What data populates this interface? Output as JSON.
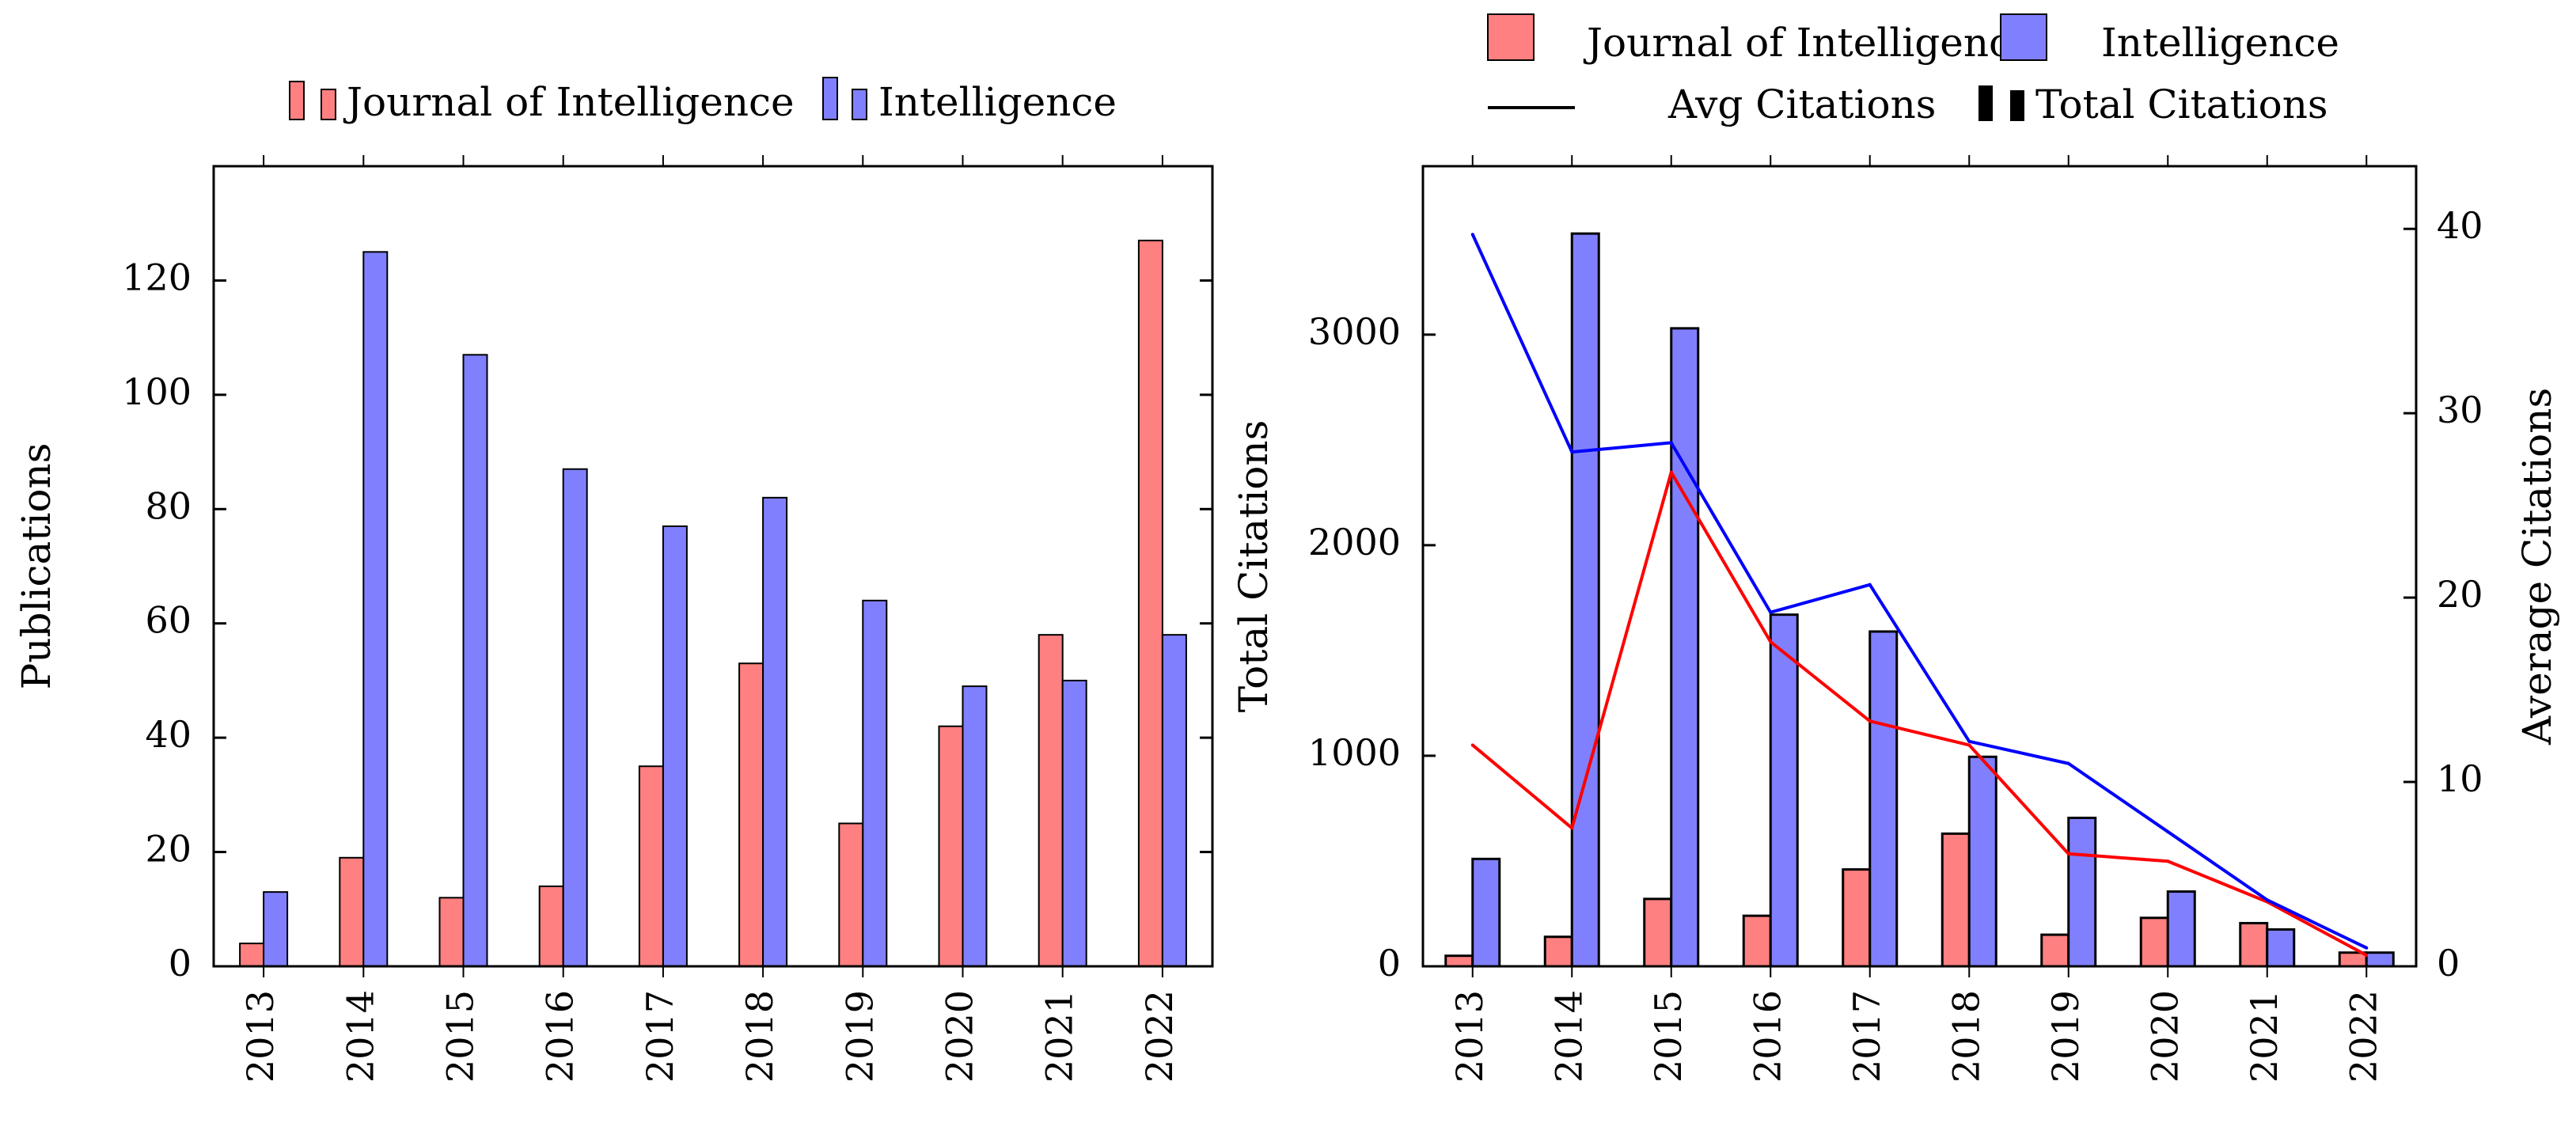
{
  "colors": {
    "journal": "#ff8080",
    "intelligence": "#8080ff",
    "journal_line": "#ff0000",
    "intelligence_line": "#0000ff",
    "stroke": "#000000"
  },
  "chart_data": [
    {
      "type": "bar",
      "categories": [
        "2013",
        "2014",
        "2015",
        "2016",
        "2017",
        "2018",
        "2019",
        "2020",
        "2021",
        "2022"
      ],
      "series": [
        {
          "name": "Journal of Intelligence",
          "values": [
            4,
            19,
            12,
            14,
            35,
            53,
            25,
            42,
            58,
            127
          ]
        },
        {
          "name": "Intelligence",
          "values": [
            13,
            125,
            107,
            87,
            77,
            82,
            64,
            49,
            50,
            58
          ]
        }
      ],
      "ylabel": "Publications",
      "xlabel": "",
      "ylim": [
        0,
        140
      ],
      "yticks": [
        0,
        20,
        40,
        60,
        80,
        100,
        120
      ],
      "legend": [
        "Journal of Intelligence",
        "Intelligence"
      ],
      "legend_position": "top"
    },
    {
      "type": "bar+line",
      "categories": [
        "2013",
        "2014",
        "2015",
        "2016",
        "2017",
        "2018",
        "2019",
        "2020",
        "2021",
        "2022"
      ],
      "series": [
        {
          "name": "Journal of Intelligence",
          "kind": "bar",
          "values": [
            50,
            140,
            320,
            240,
            460,
            630,
            150,
            230,
            205,
            65
          ]
        },
        {
          "name": "Intelligence",
          "kind": "bar",
          "values": [
            510,
            3480,
            3030,
            1670,
            1590,
            995,
            705,
            355,
            175,
            65
          ]
        }
      ],
      "line_series": [
        {
          "name": "Journal of Intelligence",
          "kind": "line",
          "values": [
            12,
            7.5,
            26.8,
            17.6,
            13.3,
            12,
            6.1,
            5.7,
            3.5,
            0.6
          ]
        },
        {
          "name": "Intelligence",
          "kind": "line",
          "values": [
            39.7,
            27.9,
            28.4,
            19.2,
            20.7,
            12.2,
            11,
            7.3,
            3.6,
            1
          ]
        }
      ],
      "ylabel": "Total Citations",
      "y2label": "Average Citations",
      "ylim": [
        0,
        3800
      ],
      "y2lim": [
        0,
        43.4
      ],
      "yticks": [
        0,
        1000,
        2000,
        3000
      ],
      "y2ticks": [
        0,
        10,
        20,
        30,
        40
      ],
      "legend": [
        "Journal of Intelligence",
        "Intelligence",
        "Avg Citations",
        "Total Citations"
      ],
      "legend_position": "top"
    }
  ]
}
